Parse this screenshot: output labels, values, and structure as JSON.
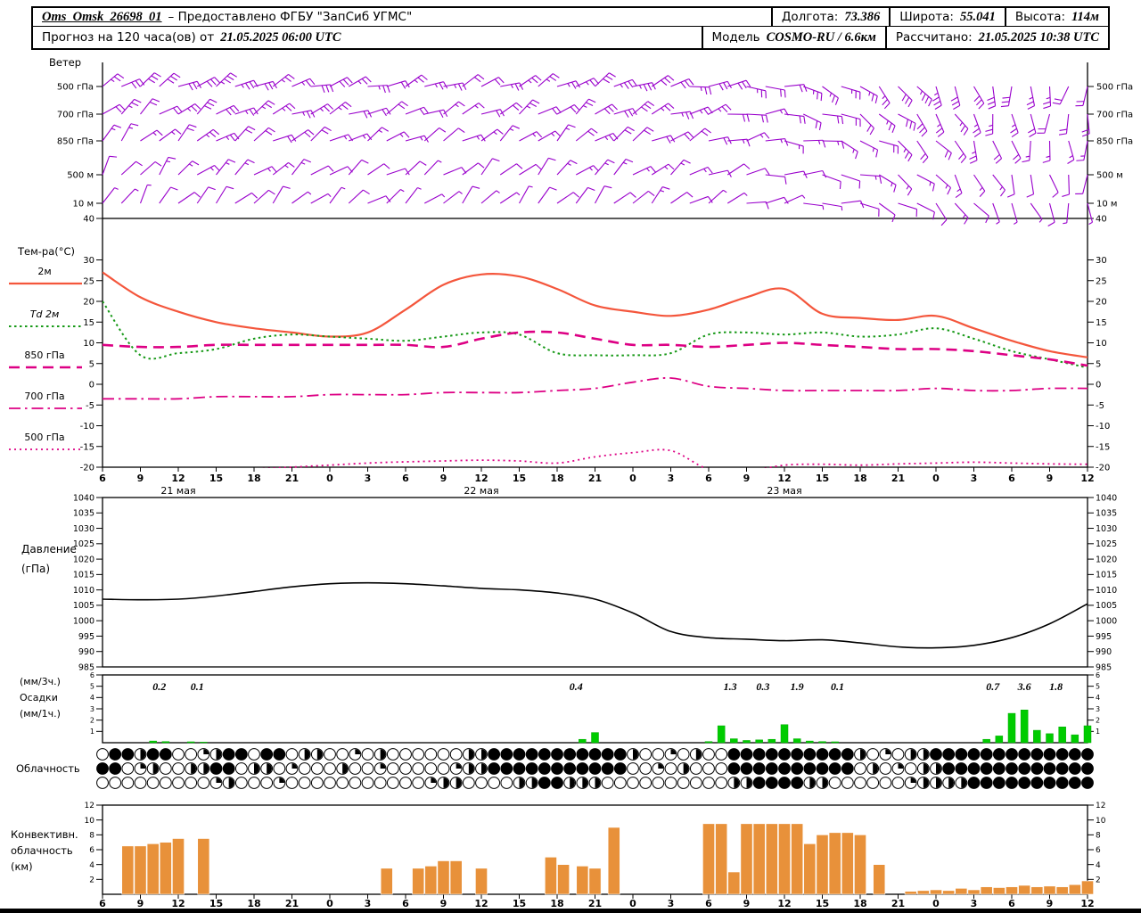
{
  "header": {
    "station": "Oms_Omsk_26698_01",
    "provider": "– Предоставлено ФГБУ \"ЗапСиб УГМС\"",
    "lon_label": "Долгота:",
    "lon": "73.386",
    "lat_label": "Широта:",
    "lat": "55.041",
    "alt_label": "Высота:",
    "alt": "114м"
  },
  "subheader": {
    "forecast_label": "Прогноз на 120 часа(ов) от",
    "forecast_time": "21.05.2025 06:00 UTC",
    "model_label": "Модель",
    "model": "COSMO-RU / 6.6км",
    "calc_label": "Рассчитано:",
    "calc_time": "21.05.2025 10:38 UTC"
  },
  "colors": {
    "wind_barbs": "#9900cc",
    "temp_2m": "#f4563c",
    "dewpoint": "#179917",
    "upper_temp": "#dd0084",
    "precip": "#00cc00",
    "pressure": "#000000",
    "convective": "#e8913a",
    "axis": "#000000"
  },
  "axes": {
    "hour_labels": [
      "6",
      "9",
      "12",
      "15",
      "18",
      "21",
      "0",
      "3",
      "6",
      "9",
      "12",
      "15",
      "18",
      "21",
      "0",
      "3",
      "6",
      "9",
      "12",
      "15",
      "18",
      "21",
      "0",
      "3",
      "6",
      "9",
      "12"
    ],
    "dates": [
      {
        "t": 6,
        "label": "21 мая"
      },
      {
        "t": 30,
        "label": "22 мая"
      },
      {
        "t": 54,
        "label": "23 мая"
      }
    ]
  },
  "chart_data": [
    {
      "panel": "wind",
      "type": "wind-barbs",
      "title": "Ветер",
      "x_start_hour": 0,
      "x_end_hour": 78,
      "x_step_hours": 3,
      "levels": [
        {
          "label": "500 гПа",
          "dirs_deg": [
            50,
            55,
            60,
            62,
            65,
            68,
            70,
            72,
            70,
            68,
            65,
            62,
            60,
            62,
            66,
            72,
            80,
            90,
            100,
            112,
            125,
            138,
            152,
            165,
            175,
            185,
            195
          ],
          "speeds_kt": [
            25,
            28,
            30,
            32,
            30,
            28,
            27,
            25,
            23,
            22,
            22,
            24,
            26,
            30,
            32,
            30,
            27,
            24,
            22,
            24,
            27,
            30,
            32,
            30,
            27,
            24,
            22
          ]
        },
        {
          "label": "700 гПа",
          "dirs_deg": [
            45,
            50,
            55,
            58,
            60,
            63,
            65,
            67,
            65,
            63,
            60,
            57,
            55,
            57,
            61,
            67,
            75,
            85,
            95,
            107,
            120,
            133,
            147,
            160,
            170,
            180,
            190
          ],
          "speeds_kt": [
            20,
            22,
            25,
            27,
            26,
            24,
            22,
            20,
            18,
            18,
            19,
            21,
            23,
            26,
            28,
            26,
            23,
            20,
            18,
            20,
            23,
            26,
            28,
            26,
            23,
            20,
            18
          ]
        },
        {
          "label": "850 гПа",
          "dirs_deg": [
            40,
            45,
            50,
            53,
            55,
            58,
            60,
            62,
            60,
            58,
            55,
            52,
            50,
            52,
            56,
            62,
            70,
            80,
            90,
            102,
            115,
            128,
            142,
            155,
            165,
            175,
            185
          ],
          "speeds_kt": [
            15,
            17,
            20,
            22,
            21,
            19,
            17,
            15,
            13,
            13,
            14,
            16,
            18,
            21,
            23,
            21,
            18,
            15,
            13,
            15,
            18,
            21,
            23,
            21,
            18,
            15,
            13
          ]
        },
        {
          "label": "500 м",
          "dirs_deg": [
            35,
            40,
            45,
            48,
            50,
            53,
            55,
            57,
            55,
            53,
            50,
            47,
            45,
            47,
            51,
            57,
            65,
            75,
            85,
            97,
            110,
            123,
            137,
            150,
            160,
            170,
            180
          ],
          "speeds_kt": [
            10,
            12,
            14,
            16,
            15,
            13,
            12,
            10,
            9,
            9,
            10,
            12,
            13,
            15,
            17,
            15,
            13,
            10,
            9,
            10,
            13,
            15,
            17,
            15,
            13,
            10,
            9
          ]
        },
        {
          "label": "10 м",
          "dirs_deg": [
            30,
            35,
            40,
            43,
            45,
            48,
            50,
            52,
            50,
            48,
            45,
            42,
            40,
            42,
            46,
            52,
            60,
            70,
            80,
            92,
            105,
            118,
            132,
            145,
            155,
            165,
            175
          ],
          "speeds_kt": [
            5,
            7,
            9,
            10,
            10,
            8,
            7,
            6,
            5,
            5,
            6,
            7,
            9,
            10,
            11,
            10,
            8,
            6,
            5,
            6,
            8,
            10,
            11,
            10,
            8,
            6,
            5
          ]
        }
      ]
    },
    {
      "panel": "temperature",
      "type": "line",
      "title": "Тем-ра(°C)",
      "ylim": [
        -20,
        40
      ],
      "yticks": [
        40,
        30,
        25,
        20,
        15,
        10,
        5,
        0,
        -5,
        -10,
        -15,
        -20
      ],
      "x_step_hours": 3,
      "series": [
        {
          "name": "2м",
          "color_key": "temp_2m",
          "style": "solid",
          "width": 2.2,
          "values": [
            27,
            21,
            17.5,
            15,
            13.5,
            12.5,
            11.5,
            12.5,
            18,
            24,
            26.5,
            26,
            23,
            19,
            17.5,
            16.5,
            18,
            21,
            23,
            17,
            16,
            15.5,
            16.5,
            13.5,
            10.5,
            8,
            6.5
          ]
        },
        {
          "name": "Td 2м",
          "color_key": "dewpoint",
          "style": "dotted",
          "width": 2,
          "values": [
            20,
            7,
            7.5,
            8.5,
            11,
            12,
            11.5,
            11,
            10.5,
            11.5,
            12.5,
            12,
            7.5,
            7,
            7,
            7.5,
            12,
            12.5,
            12,
            12.5,
            11.5,
            12,
            13.5,
            11,
            8,
            6,
            4
          ]
        },
        {
          "name": "850 гПа",
          "color_key": "upper_temp",
          "style": "dashed",
          "width": 2.6,
          "values": [
            9.5,
            9,
            9,
            9.5,
            9.5,
            9.5,
            9.5,
            9.5,
            9.5,
            9,
            11,
            12.5,
            12.5,
            11,
            9.5,
            9.5,
            9,
            9.5,
            10,
            9.5,
            9,
            8.5,
            8.5,
            8,
            7,
            6,
            4.5
          ]
        },
        {
          "name": "700 гПа",
          "color_key": "upper_temp",
          "style": "dashdot",
          "width": 1.8,
          "values": [
            -3.5,
            -3.5,
            -3.5,
            -3,
            -3,
            -3,
            -2.5,
            -2.5,
            -2.5,
            -2,
            -2,
            -2,
            -1.5,
            -1,
            0.5,
            1.5,
            -0.5,
            -1,
            -1.5,
            -1.5,
            -1.5,
            -1.5,
            -1,
            -1.5,
            -1.5,
            -1,
            -1
          ]
        },
        {
          "name": "500 гПа",
          "color_key": "upper_temp",
          "style": "finedot",
          "width": 1.8,
          "values": [
            -22,
            -22,
            -21.5,
            -21,
            -20.5,
            -20,
            -19.5,
            -19,
            -18.7,
            -18.5,
            -18.3,
            -18.5,
            -19,
            -17.5,
            -16.5,
            -16,
            -20.5,
            -21,
            -19.5,
            -19.3,
            -19.5,
            -19.2,
            -19,
            -18.8,
            -19,
            -19.2,
            -19.3
          ]
        }
      ]
    },
    {
      "panel": "pressure",
      "type": "line",
      "title_lines": [
        "Давление",
        "(гПа)"
      ],
      "ylim": [
        985,
        1040
      ],
      "yticks": [
        1040,
        1035,
        1030,
        1025,
        1020,
        1015,
        1010,
        1005,
        1000,
        995,
        990,
        985
      ],
      "x_step_hours": 3,
      "series": [
        {
          "name": "Давление",
          "color_key": "pressure",
          "style": "solid",
          "width": 1.6,
          "values": [
            1007,
            1006.8,
            1007,
            1008,
            1009.5,
            1011,
            1012,
            1012.3,
            1012,
            1011.3,
            1010.5,
            1010,
            1009,
            1007,
            1002.5,
            996.5,
            994.5,
            994,
            993.5,
            993.8,
            992.8,
            991.5,
            991.2,
            992,
            994.5,
            999,
            1005.5
          ]
        }
      ]
    },
    {
      "panel": "precipitation",
      "type": "bar",
      "title_lines": [
        "(мм/3ч.)",
        "Осадки",
        "(мм/1ч.)"
      ],
      "ylim": [
        0,
        6
      ],
      "yticks": [
        6,
        5,
        4,
        3,
        2,
        1
      ],
      "bars": [
        [
          4,
          0.15
        ],
        [
          5,
          0.1
        ],
        [
          7,
          0.08
        ],
        [
          8,
          0.05
        ],
        [
          38,
          0.3
        ],
        [
          39,
          0.9
        ],
        [
          48,
          0.1
        ],
        [
          49,
          1.5
        ],
        [
          50,
          0.35
        ],
        [
          51,
          0.2
        ],
        [
          52,
          0.25
        ],
        [
          53,
          0.3
        ],
        [
          54,
          1.6
        ],
        [
          55,
          0.35
        ],
        [
          56,
          0.15
        ],
        [
          57,
          0.1
        ],
        [
          58,
          0.08
        ],
        [
          70,
          0.3
        ],
        [
          71,
          0.6
        ],
        [
          72,
          2.6
        ],
        [
          73,
          2.9
        ],
        [
          74,
          1.1
        ],
        [
          75,
          0.8
        ],
        [
          76,
          1.4
        ],
        [
          77,
          0.7
        ],
        [
          78,
          1.5
        ]
      ],
      "sum_labels": [
        [
          4.5,
          "0.2"
        ],
        [
          7.5,
          "0.1"
        ],
        [
          37.5,
          "0.4"
        ],
        [
          49.7,
          "1.3"
        ],
        [
          52.3,
          "0.3"
        ],
        [
          55,
          "1.9"
        ],
        [
          58.2,
          "0.1"
        ],
        [
          70.5,
          "0.7"
        ],
        [
          73,
          "3.6"
        ],
        [
          75.5,
          "1.8"
        ]
      ]
    },
    {
      "panel": "cloudiness",
      "type": "cloud-cover-rows",
      "title": "Облачность",
      "rows_octas": [
        "0884880024880880440020400000044888888888884002040088888888884020448888888888888",
        "8802400448804402000400200000244888888888880020400088888888880402044888888888888",
        "0000000002400020000000000024400004488444000000000044888844000000244448888888888"
      ]
    },
    {
      "panel": "convective-clouds",
      "type": "bar",
      "title_lines": [
        "Конвективн.",
        "облачность",
        "(км)"
      ],
      "ylim": [
        0,
        12
      ],
      "yticks": [
        12,
        10,
        8,
        6,
        4,
        2
      ],
      "bars": [
        [
          2,
          6.5
        ],
        [
          3,
          6.5
        ],
        [
          4,
          6.8
        ],
        [
          5,
          7
        ],
        [
          6,
          7.5
        ],
        [
          8,
          7.5
        ],
        [
          22.5,
          3.5
        ],
        [
          25,
          3.5
        ],
        [
          26,
          3.8
        ],
        [
          27,
          4.5
        ],
        [
          28,
          4.5
        ],
        [
          30,
          3.5
        ],
        [
          35.5,
          5
        ],
        [
          36.5,
          4
        ],
        [
          38,
          3.8
        ],
        [
          39,
          3.5
        ],
        [
          40.5,
          9
        ],
        [
          48,
          9.5
        ],
        [
          49,
          9.5
        ],
        [
          50,
          3
        ],
        [
          51,
          9.5
        ],
        [
          52,
          9.5
        ],
        [
          53,
          9.5
        ],
        [
          54,
          9.5
        ],
        [
          55,
          9.5
        ],
        [
          56,
          6.8
        ],
        [
          57,
          8
        ],
        [
          58,
          8.3
        ],
        [
          59,
          8.3
        ],
        [
          60,
          8
        ],
        [
          61.5,
          4
        ],
        [
          64,
          0.4
        ],
        [
          65,
          0.5
        ],
        [
          66,
          0.6
        ],
        [
          67,
          0.5
        ],
        [
          68,
          0.8
        ],
        [
          69,
          0.6
        ],
        [
          70,
          1
        ],
        [
          71,
          0.9
        ],
        [
          72,
          1
        ],
        [
          73,
          1.2
        ],
        [
          74,
          1
        ],
        [
          75,
          1.1
        ],
        [
          76,
          1
        ],
        [
          77,
          1.3
        ],
        [
          78,
          1.8
        ]
      ]
    }
  ]
}
